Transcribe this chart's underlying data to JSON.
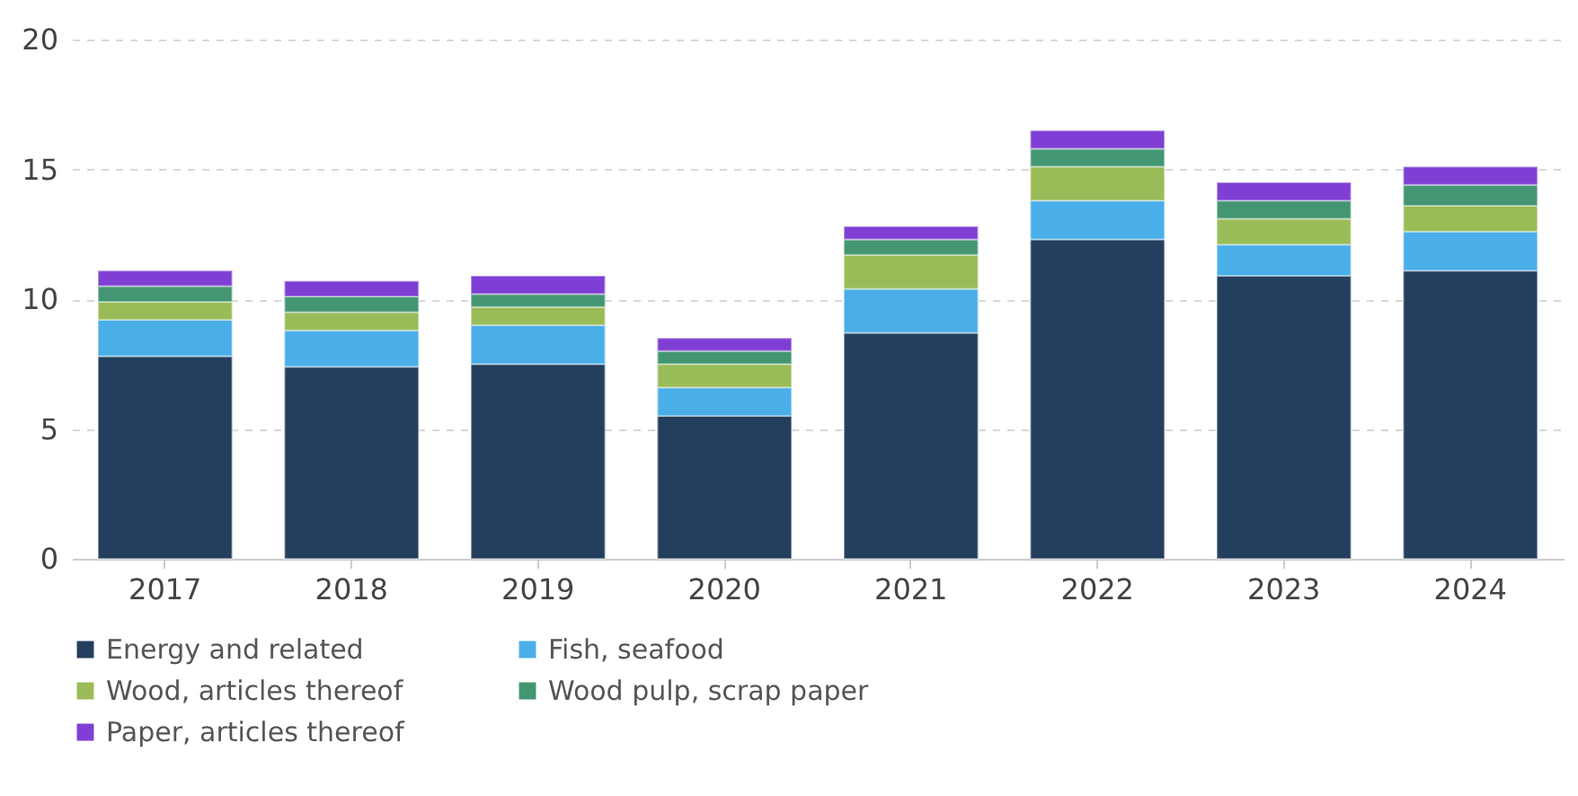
{
  "chart_data": {
    "type": "bar",
    "stacked": true,
    "categories": [
      "2017",
      "2018",
      "2019",
      "2020",
      "2021",
      "2022",
      "2023",
      "2024"
    ],
    "series": [
      {
        "name": "Energy and related",
        "color": "#243f5e",
        "values": [
          7.8,
          7.4,
          7.5,
          5.5,
          8.7,
          12.3,
          10.9,
          11.1
        ]
      },
      {
        "name": "Fish, seafood",
        "color": "#4aaee8",
        "values": [
          1.4,
          1.4,
          1.5,
          1.1,
          1.7,
          1.5,
          1.2,
          1.5
        ]
      },
      {
        "name": "Wood, articles thereof",
        "color": "#9abc58",
        "values": [
          0.7,
          0.7,
          0.7,
          0.9,
          1.3,
          1.3,
          1.0,
          1.0
        ]
      },
      {
        "name": "Wood pulp, scrap paper",
        "color": "#449673",
        "values": [
          0.6,
          0.6,
          0.5,
          0.5,
          0.6,
          0.7,
          0.7,
          0.8
        ]
      },
      {
        "name": "Paper, articles thereof",
        "color": "#7f3fd4",
        "values": [
          0.6,
          0.6,
          0.7,
          0.5,
          0.5,
          0.7,
          0.7,
          0.7
        ]
      }
    ],
    "ylim": [
      0,
      20
    ],
    "yticks": [
      0,
      5,
      10,
      15,
      20
    ],
    "grid": "y",
    "legend": "bottom"
  }
}
